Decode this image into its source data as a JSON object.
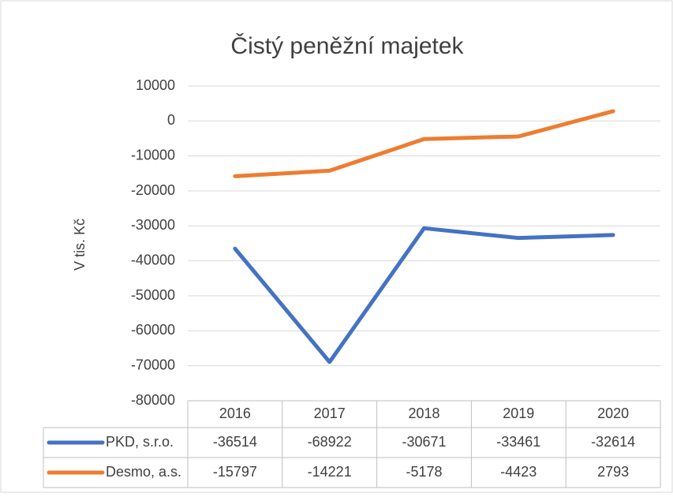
{
  "chart_data": {
    "type": "line",
    "title": "Čistý peněžní majetek",
    "y_label": "V tis. Kč",
    "categories": [
      "2016",
      "2017",
      "2018",
      "2019",
      "2020"
    ],
    "series": [
      {
        "name": "PKD, s.r.o.",
        "color": "#4472c4",
        "values": [
          -36514,
          -68922,
          -30671,
          -33461,
          -32614
        ]
      },
      {
        "name": "Desmo, a.s.",
        "color": "#ed7d31",
        "values": [
          -15797,
          -14221,
          -5178,
          -4423,
          2793
        ]
      }
    ],
    "ylim": [
      -80000,
      10000
    ],
    "yticks": [
      -80000,
      -70000,
      -60000,
      -50000,
      -40000,
      -30000,
      -20000,
      -10000,
      0,
      10000
    ],
    "grid": true,
    "data_table": true
  }
}
